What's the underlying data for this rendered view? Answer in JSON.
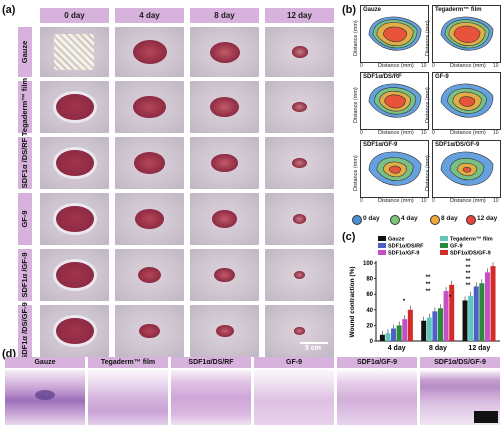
{
  "panel_a": {
    "letter": "(a)",
    "columns": [
      "0 day",
      "4 day",
      "8 day",
      "12 day"
    ],
    "rows": [
      "Gauze",
      "Tegaderm™ film",
      "SDF1α /DS/RF",
      "GF-9",
      "SDF1α /GF-9",
      "SDF1α /DS/GF-9"
    ],
    "scale_label": "5 cm"
  },
  "panel_b": {
    "letter": "(b)",
    "cells": [
      "Gauze",
      "Tegaderm™ film",
      "SDF1α/DS/RF",
      "GF-9",
      "SDF1α/GF-9",
      "SDF1α/DS/GF-9"
    ],
    "x_label": "Distance (mm)",
    "y_label": "Distance (mm)",
    "tick_min": "0",
    "tick_max": "10",
    "legend": [
      "0 day",
      "4 day",
      "8 day",
      "12 day"
    ],
    "legend_colors": [
      "#4a90d9",
      "#7cc576",
      "#f2a93b",
      "#e8433a"
    ]
  },
  "panel_c": {
    "letter": "(c)",
    "chart_data": {
      "type": "bar",
      "ylabel": "Wound contraction (%)",
      "ylim": [
        0,
        100
      ],
      "yticks": [
        "0",
        "20",
        "40",
        "60",
        "80",
        "100"
      ],
      "categories": [
        "4 day",
        "8 day",
        "12 day"
      ],
      "series": [
        {
          "name": "Gauze",
          "color": "#111111",
          "values": [
            8,
            26,
            52
          ]
        },
        {
          "name": "Tegaderm™ film",
          "color": "#5ec7b8",
          "values": [
            10,
            30,
            58
          ]
        },
        {
          "name": "SDF1α/DS/RF",
          "color": "#4b5fc4",
          "values": [
            16,
            38,
            70
          ]
        },
        {
          "name": "GF-9",
          "color": "#2a8a3a",
          "values": [
            20,
            42,
            74
          ]
        },
        {
          "name": "SDF1α/GF-9",
          "color": "#c44fc4",
          "values": [
            28,
            64,
            88
          ]
        },
        {
          "name": "SDF1α/DS/GF-9",
          "color": "#d42a2a",
          "values": [
            40,
            72,
            96
          ]
        }
      ],
      "annotations": [
        "*",
        "**",
        "**",
        "**",
        "*",
        "**",
        "**",
        "**",
        "**",
        "**"
      ]
    }
  },
  "panel_d": {
    "letter": "(d)",
    "labels": [
      "Gauze",
      "Tegaderm™ film",
      "SDF1α/DS/RF",
      "GF-9",
      "SDF1α/GF-9",
      "SDF1α/DS/GF-9"
    ]
  }
}
